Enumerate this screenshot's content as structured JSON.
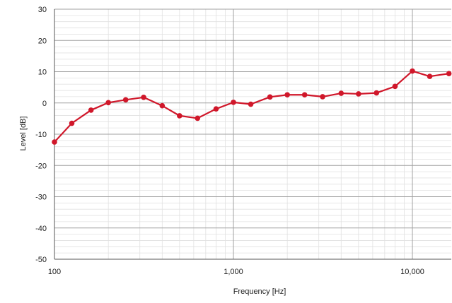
{
  "chart_data": {
    "type": "line",
    "xlabel": "Frequency [Hz]",
    "ylabel": "Level [dB]",
    "x_scale": "log",
    "xlim": [
      100,
      16000
    ],
    "ylim": [
      -50,
      30
    ],
    "grid": true,
    "x_tick_values": [
      100,
      1000,
      10000
    ],
    "x_tick_labels": [
      "100",
      "1,000",
      "10,000"
    ],
    "y_tick_values": [
      30,
      20,
      10,
      0,
      -10,
      -20,
      -30,
      -40,
      -50
    ],
    "y_tick_labels": [
      "30",
      "20",
      "10",
      "0",
      "-10",
      "-20",
      "-30",
      "-40",
      "-50"
    ],
    "series": [
      {
        "color": "#d0172a",
        "x": [
          100,
          125,
          160,
          200,
          250,
          315,
          400,
          500,
          630,
          800,
          1000,
          1250,
          1600,
          2000,
          2500,
          3150,
          4000,
          5000,
          6300,
          8000,
          10000,
          12500,
          16000
        ],
        "y": [
          -12.5,
          -6.5,
          -2.3,
          0.1,
          1.0,
          1.8,
          -0.9,
          -4.1,
          -4.9,
          -1.9,
          0.2,
          -0.4,
          1.9,
          2.6,
          2.6,
          2.0,
          3.1,
          2.9,
          3.2,
          5.3,
          10.2,
          8.5,
          9.4
        ]
      }
    ]
  }
}
